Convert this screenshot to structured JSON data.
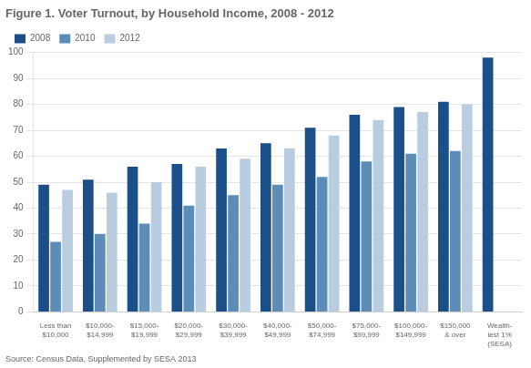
{
  "chart_data": {
    "type": "bar",
    "title": "Figure 1. Voter Turnout, by Household Income, 2008 - 2012",
    "source": "Source: Census Data, Supplemented by SESA 2013",
    "categories": [
      "Less than\n$10,000",
      "$10,000-\n$14,999",
      "$15,000-\n$19,999",
      "$20,000-\n$29,999",
      "$30,000-\n$39,999",
      "$40,000-\n$49,999",
      "$50,000-\n$74,999",
      "$75,000-\n$99,999",
      "$100,000-\n$149,999",
      "$150,000\n& over",
      "Wealth-\niest 1%\n(SESA)"
    ],
    "series": [
      {
        "name": "2008",
        "color": "#1a4f8a",
        "values": [
          49,
          51,
          56,
          57,
          63,
          65,
          71,
          76,
          79,
          81,
          98
        ]
      },
      {
        "name": "2010",
        "color": "#5b8db8",
        "values": [
          27,
          30,
          34,
          41,
          45,
          49,
          52,
          58,
          61,
          62,
          null
        ]
      },
      {
        "name": "2012",
        "color": "#b8cde0",
        "values": [
          47,
          46,
          50,
          56,
          59,
          63,
          68,
          74,
          77,
          80,
          null
        ]
      }
    ],
    "ylim": [
      0,
      100
    ],
    "yticks": [
      0,
      10,
      20,
      30,
      40,
      50,
      60,
      70,
      80,
      90,
      100
    ],
    "grid": true,
    "legend": "upper left"
  }
}
